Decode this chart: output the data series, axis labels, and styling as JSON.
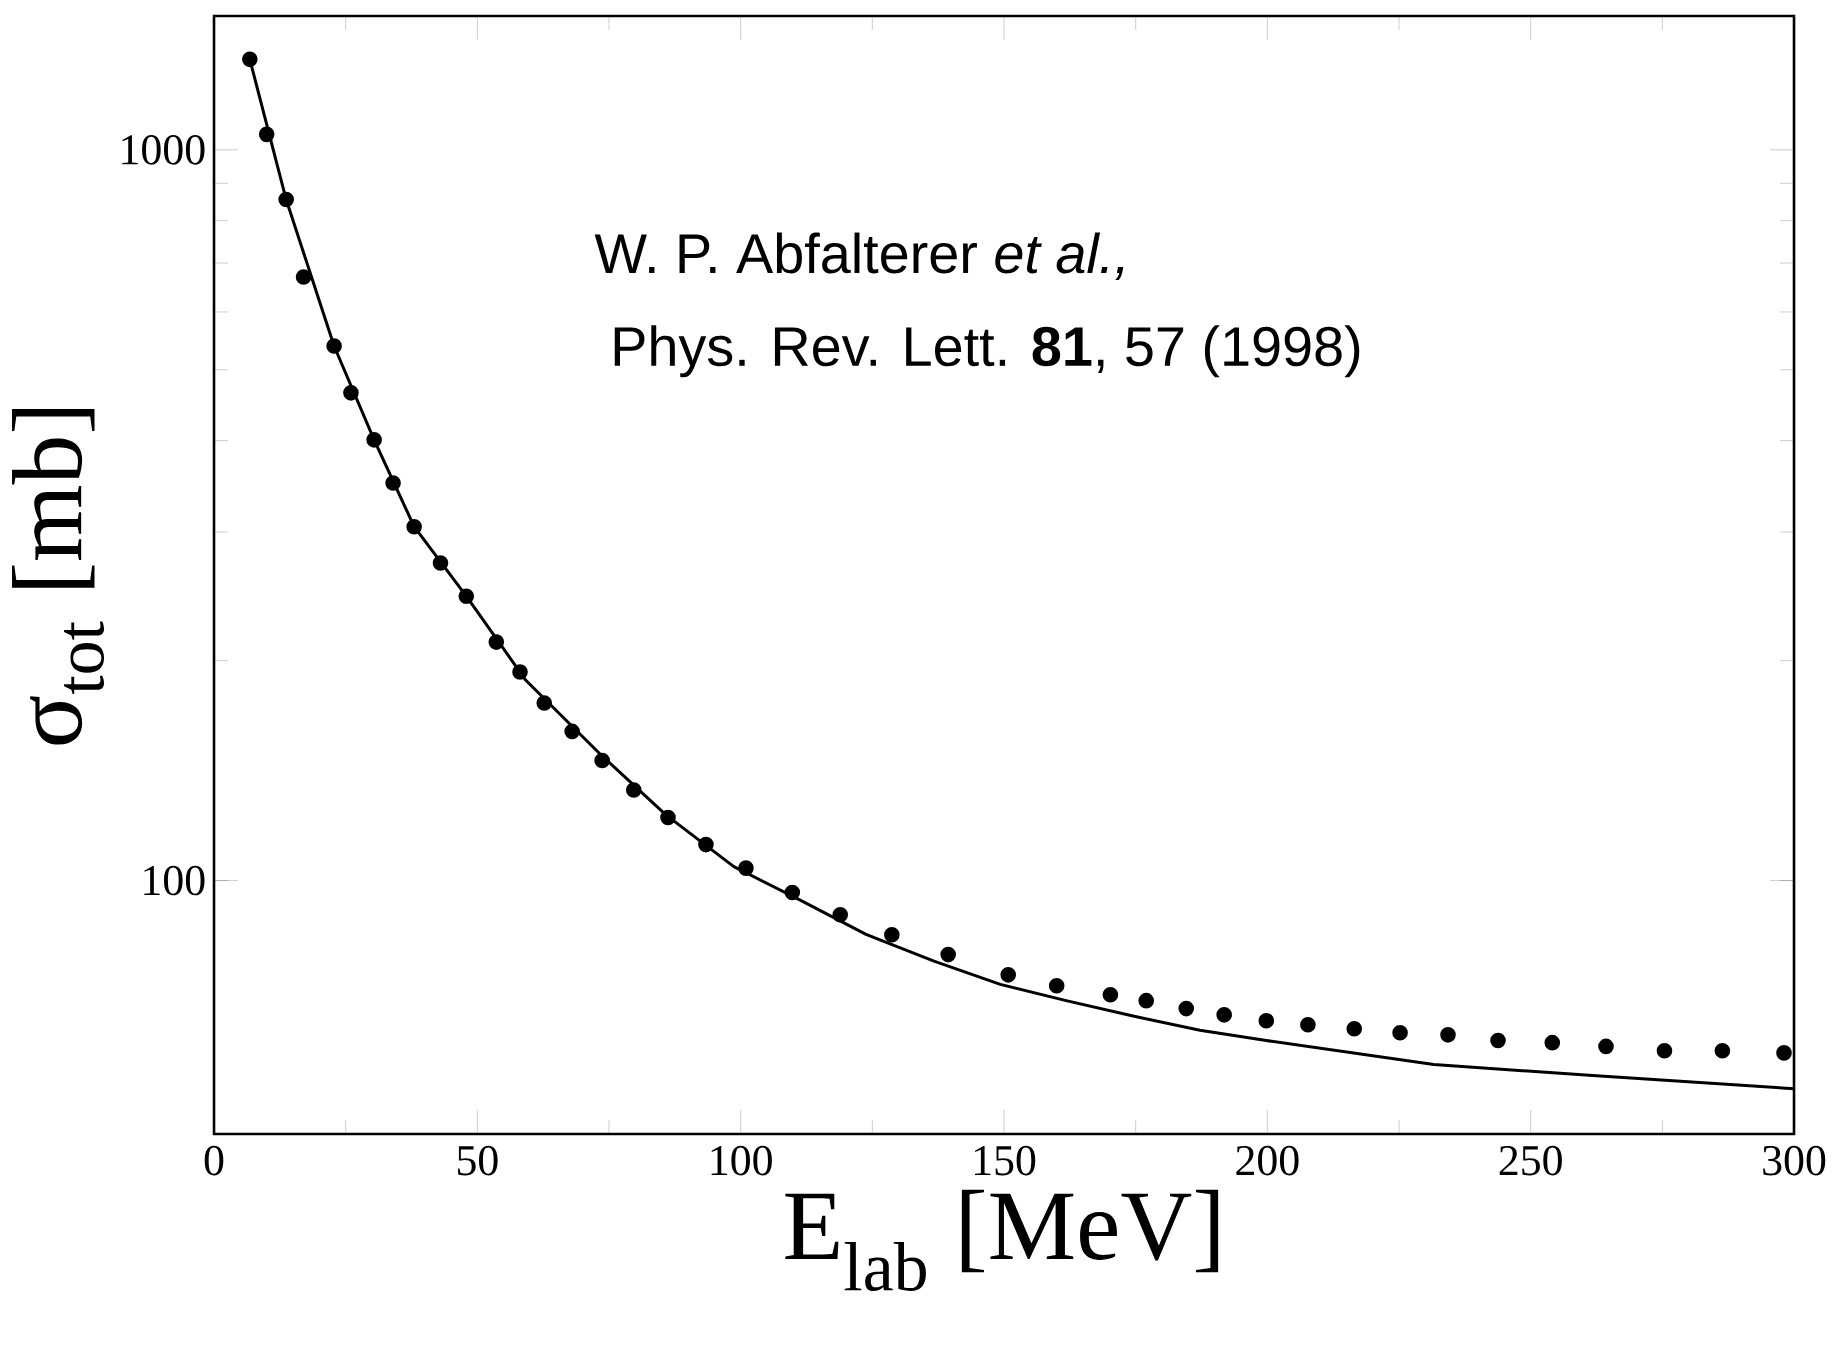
{
  "chart_data": {
    "type": "line",
    "xlabel": "E$_{lab}$   [MeV]",
    "ylabel": "σ$_{tot}$   [mb]",
    "annotations": [
      "W. P. Abfalterer *et al.,*",
      "Phys. Rev. Lett. **81**, 57 (1998)"
    ],
    "xlim": [
      0,
      300
    ],
    "ylim": [
      45,
      1525
    ],
    "xticks": [
      0,
      50,
      100,
      150,
      200,
      250,
      300
    ],
    "yticks": [
      100,
      1000
    ],
    "log": "y",
    "series": [
      {
        "type": "scatter",
        "marker": "circle",
        "color": "#000000",
        "x": [
          6.8,
          10,
          13.7,
          17,
          22.8,
          26,
          30.4,
          34,
          38,
          43,
          47.9,
          53.6,
          58.1,
          62.7,
          68,
          73.7,
          79.7,
          86.2,
          93.4,
          101,
          109.8,
          118.9,
          128.7,
          139.4,
          150.8,
          160,
          170.2,
          177,
          184.6,
          191.8,
          199.8,
          207.7,
          216.5,
          225.2,
          234.3,
          243.8,
          254.1,
          264.3,
          275.4,
          286.4,
          298.1
        ],
        "values": [
          1330,
          1050,
          855,
          670,
          539,
          465,
          401,
          350,
          305,
          272,
          245,
          212,
          193,
          175,
          160,
          146,
          133,
          122,
          112,
          104,
          96.3,
          89.8,
          84.3,
          79.2,
          74.3,
          71.8,
          69.8,
          68.5,
          66.8,
          65.5,
          64.3,
          63.5,
          62.7,
          61.9,
          61.5,
          60.4,
          60,
          59.3,
          58.5,
          58.5,
          58.1
        ]
      },
      {
        "color": "#000000",
        "x": [
          6.8,
          13.7,
          22.8,
          30.4,
          38,
          47.9,
          59.2,
          73.3,
          85.8,
          98.7,
          111.3,
          123.8,
          136.7,
          149.3,
          161.8,
          174.7,
          187.2,
          199.8,
          231.6,
          263.2,
          300
        ],
        "values": [
          1330,
          855,
          539,
          401,
          305,
          245,
          188,
          149,
          123,
          104.5,
          94,
          84.4,
          77.6,
          72.1,
          68.5,
          65.2,
          62.4,
          60.4,
          56,
          54,
          51.9
        ]
      }
    ]
  }
}
